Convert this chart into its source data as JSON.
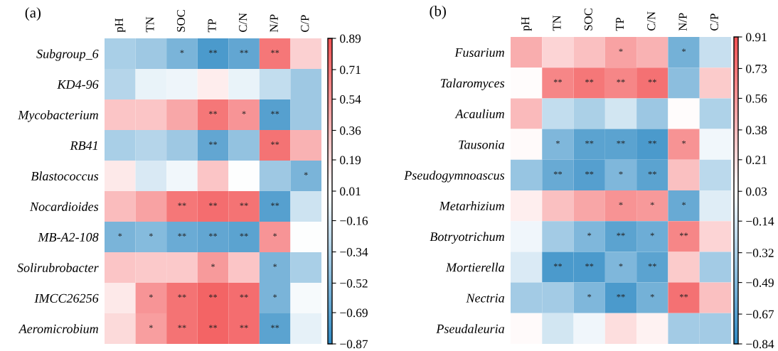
{
  "chart_data": [
    {
      "type": "heatmap",
      "title": "(a)",
      "categories": [
        "pH",
        "TN",
        "SOC",
        "TP",
        "C/N",
        "N/P",
        "C/P"
      ],
      "y_categories": [
        "Subgroup_6",
        "KD4-96",
        "Mycobacterium",
        "RB41",
        "Blastococcus",
        "Nocardioides",
        "MB-A2-108",
        "Solirubrobacter",
        "IMCC26256",
        "Aeromicrobium"
      ],
      "cells": [
        [
          -0.35,
          -0.4,
          -0.55,
          -0.75,
          -0.65,
          0.7,
          0.25
        ],
        [
          -0.3,
          -0.08,
          -0.06,
          0.1,
          -0.08,
          -0.25,
          -0.4
        ],
        [
          0.3,
          0.3,
          0.45,
          0.7,
          0.55,
          -0.7,
          -0.4
        ],
        [
          -0.35,
          -0.3,
          -0.4,
          -0.65,
          -0.45,
          0.72,
          0.4
        ],
        [
          0.12,
          -0.15,
          -0.05,
          0.3,
          0.0,
          -0.4,
          -0.55
        ],
        [
          0.35,
          0.48,
          0.7,
          0.75,
          0.72,
          -0.7,
          -0.2
        ],
        [
          -0.55,
          -0.5,
          -0.62,
          -0.65,
          -0.68,
          0.55,
          0.0
        ],
        [
          0.3,
          0.28,
          0.28,
          0.52,
          0.3,
          -0.55,
          -0.35
        ],
        [
          0.12,
          0.55,
          0.72,
          0.8,
          0.75,
          -0.55,
          -0.03
        ],
        [
          0.2,
          0.5,
          0.72,
          0.8,
          0.75,
          -0.68,
          -0.1
        ]
      ],
      "cell_labels": [
        [
          null,
          null,
          "*",
          "**",
          "**",
          "**",
          null
        ],
        [
          null,
          null,
          null,
          null,
          null,
          null,
          null
        ],
        [
          null,
          null,
          null,
          "**",
          "*",
          "**",
          null
        ],
        [
          null,
          null,
          null,
          "**",
          null,
          "**",
          null
        ],
        [
          null,
          null,
          null,
          null,
          null,
          null,
          "*"
        ],
        [
          null,
          null,
          "**",
          "**",
          "**",
          "**",
          null
        ],
        [
          "*",
          "*",
          "**",
          "**",
          "**",
          "*",
          null
        ],
        [
          null,
          null,
          null,
          "*",
          null,
          "*",
          null
        ],
        [
          null,
          "*",
          "**",
          "**",
          "**",
          "*",
          null
        ],
        [
          null,
          "*",
          "**",
          "**",
          "**",
          "**",
          null
        ]
      ],
      "clim": [
        -0.87,
        0.89
      ],
      "cticks": [
        -0.87,
        -0.69,
        -0.52,
        -0.34,
        -0.16,
        0.01,
        0.19,
        0.36,
        0.54,
        0.71,
        0.89
      ]
    },
    {
      "type": "heatmap",
      "title": "(b)",
      "categories": [
        "pH",
        "TN",
        "SOC",
        "TP",
        "C/N",
        "N/P",
        "C/P"
      ],
      "y_categories": [
        "Fusarium",
        "Talaromyces",
        "Acaulium",
        "Tausonia",
        "Pseudogymnoascus",
        "Metarhizium",
        "Botryotrichum",
        "Mortierella",
        "Nectria",
        "Pseudaleuria"
      ],
      "cells": [
        [
          0.45,
          0.25,
          0.35,
          0.5,
          0.42,
          -0.55,
          -0.2
        ],
        [
          0.05,
          0.65,
          0.72,
          0.65,
          0.75,
          -0.45,
          0.3
        ],
        [
          0.38,
          -0.22,
          -0.32,
          -0.15,
          -0.38,
          0.05,
          -0.3
        ],
        [
          0.06,
          -0.5,
          -0.65,
          -0.65,
          -0.72,
          0.58,
          -0.02
        ],
        [
          -0.4,
          -0.6,
          -0.68,
          -0.5,
          -0.65,
          0.35,
          -0.25
        ],
        [
          0.12,
          0.35,
          0.48,
          0.58,
          0.55,
          -0.6,
          -0.1
        ],
        [
          -0.03,
          -0.35,
          -0.5,
          -0.65,
          -0.58,
          0.65,
          0.25
        ],
        [
          -0.12,
          -0.72,
          -0.72,
          -0.5,
          -0.65,
          0.3,
          -0.35
        ],
        [
          -0.35,
          -0.35,
          -0.5,
          -0.72,
          -0.55,
          0.75,
          0.35
        ],
        [
          0.06,
          -0.15,
          -0.03,
          0.2,
          0.1,
          -0.35,
          -0.35
        ]
      ],
      "cell_labels": [
        [
          null,
          null,
          null,
          "*",
          null,
          "*",
          null
        ],
        [
          null,
          "**",
          "**",
          "**",
          "**",
          null,
          null
        ],
        [
          null,
          null,
          null,
          null,
          null,
          null,
          null
        ],
        [
          null,
          "*",
          "**",
          "**",
          "**",
          "*",
          null
        ],
        [
          null,
          "**",
          "**",
          "*",
          "**",
          null,
          null
        ],
        [
          null,
          null,
          null,
          "*",
          "*",
          "*",
          null
        ],
        [
          null,
          null,
          "*",
          "**",
          "*",
          "**",
          null
        ],
        [
          null,
          "**",
          "**",
          "*",
          "**",
          null,
          null
        ],
        [
          null,
          null,
          "*",
          "**",
          "*",
          "**",
          null
        ],
        [
          null,
          null,
          null,
          null,
          null,
          null,
          null
        ]
      ],
      "clim": [
        -0.84,
        0.91
      ],
      "cticks": [
        -0.84,
        -0.67,
        -0.49,
        -0.32,
        -0.14,
        0.03,
        0.21,
        0.38,
        0.56,
        0.73,
        0.91
      ]
    }
  ]
}
